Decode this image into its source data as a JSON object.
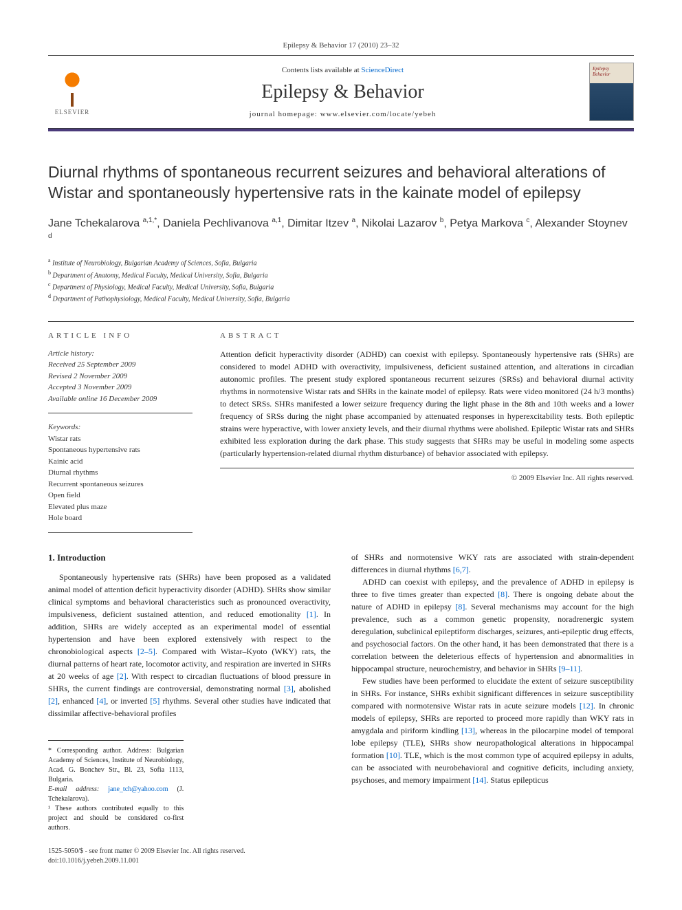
{
  "journal_ref": "Epilepsy & Behavior 17 (2010) 23–32",
  "header": {
    "contents_prefix": "Contents lists available at ",
    "contents_link": "ScienceDirect",
    "journal_name": "Epilepsy & Behavior",
    "homepage_prefix": "journal homepage: ",
    "homepage_url": "www.elsevier.com/locate/yebeh",
    "publisher": "ELSEVIER"
  },
  "title": "Diurnal rhythms of spontaneous recurrent seizures and behavioral alterations of Wistar and spontaneously hypertensive rats in the kainate model of epilepsy",
  "authors_html": "Jane Tchekalarova <sup>a,1,*</sup>, Daniela Pechlivanova <sup>a,1</sup>, Dimitar Itzev <sup>a</sup>, Nikolai Lazarov <sup>b</sup>, Petya Markova <sup>c</sup>, Alexander Stoynev <sup>d</sup>",
  "affiliations": [
    {
      "sup": "a",
      "text": "Institute of Neurobiology, Bulgarian Academy of Sciences, Sofia, Bulgaria"
    },
    {
      "sup": "b",
      "text": "Department of Anatomy, Medical Faculty, Medical University, Sofia, Bulgaria"
    },
    {
      "sup": "c",
      "text": "Department of Physiology, Medical Faculty, Medical University, Sofia, Bulgaria"
    },
    {
      "sup": "d",
      "text": "Department of Pathophysiology, Medical Faculty, Medical University, Sofia, Bulgaria"
    }
  ],
  "article_info_label": "ARTICLE INFO",
  "abstract_label": "ABSTRACT",
  "history": {
    "label": "Article history:",
    "received": "Received 25 September 2009",
    "revised": "Revised 2 November 2009",
    "accepted": "Accepted 3 November 2009",
    "online": "Available online 16 December 2009"
  },
  "keywords": {
    "label": "Keywords:",
    "items": [
      "Wistar rats",
      "Spontaneous hypertensive rats",
      "Kainic acid",
      "Diurnal rhythms",
      "Recurrent spontaneous seizures",
      "Open field",
      "Elevated plus maze",
      "Hole board"
    ]
  },
  "abstract": "Attention deficit hyperactivity disorder (ADHD) can coexist with epilepsy. Spontaneously hypertensive rats (SHRs) are considered to model ADHD with overactivity, impulsiveness, deficient sustained attention, and alterations in circadian autonomic profiles. The present study explored spontaneous recurrent seizures (SRSs) and behavioral diurnal activity rhythms in normotensive Wistar rats and SHRs in the kainate model of epilepsy. Rats were video monitored (24 h/3 months) to detect SRSs. SHRs manifested a lower seizure frequency during the light phase in the 8th and 10th weeks and a lower frequency of SRSs during the night phase accompanied by attenuated responses in hyperexcitability tests. Both epileptic strains were hyperactive, with lower anxiety levels, and their diurnal rhythms were abolished. Epileptic Wistar rats and SHRs exhibited less exploration during the dark phase. This study suggests that SHRs may be useful in modeling some aspects (particularly hypertension-related diurnal rhythm disturbance) of behavior associated with epilepsy.",
  "copyright": "© 2009 Elsevier Inc. All rights reserved.",
  "intro_heading": "1. Introduction",
  "col1_p1": "Spontaneously hypertensive rats (SHRs) have been proposed as a validated animal model of attention deficit hyperactivity disorder (ADHD). SHRs show similar clinical symptoms and behavioral characteristics such as pronounced overactivity, impulsiveness, deficient sustained attention, and reduced emotionality [1]. In addition, SHRs are widely accepted as an experimental model of essential hypertension and have been explored extensively with respect to the chronobiological aspects [2–5]. Compared with Wistar–Kyoto (WKY) rats, the diurnal patterns of heart rate, locomotor activity, and respiration are inverted in SHRs at 20 weeks of age [2]. With respect to circadian fluctuations of blood pressure in SHRs, the current findings are controversial, demonstrating normal [3], abolished [2], enhanced [4], or inverted [5] rhythms. Several other studies have indicated that dissimilar affective-behavioral profiles",
  "col2_p1": "of SHRs and normotensive WKY rats are associated with strain-dependent differences in diurnal rhythms [6,7].",
  "col2_p2": "ADHD can coexist with epilepsy, and the prevalence of ADHD in epilepsy is three to five times greater than expected [8]. There is ongoing debate about the nature of ADHD in epilepsy [8]. Several mechanisms may account for the high prevalence, such as a common genetic propensity, noradrenergic system deregulation, subclinical epileptiform discharges, seizures, anti-epileptic drug effects, and psychosocial factors. On the other hand, it has been demonstrated that there is a correlation between the deleterious effects of hypertension and abnormalities in hippocampal structure, neurochemistry, and behavior in SHRs [9–11].",
  "col2_p3": "Few studies have been performed to elucidate the extent of seizure susceptibility in SHRs. For instance, SHRs exhibit significant differences in seizure susceptibility compared with normotensive Wistar rats in acute seizure models [12]. In chronic models of epilepsy, SHRs are reported to proceed more rapidly than WKY rats in amygdala and piriform kindling [13], whereas in the pilocarpine model of temporal lobe epilepsy (TLE), SHRs show neuropathological alterations in hippocampal formation [10]. TLE, which is the most common type of acquired epilepsy in adults, can be associated with neurobehavioral and cognitive deficits, including anxiety, psychoses, and memory impairment [14]. Status epilepticus",
  "footnotes": {
    "corresponding": "* Corresponding author. Address: Bulgarian Academy of Sciences, Institute of Neurobiology, Acad. G. Bonchev Str., Bl. 23, Sofia 1113, Bulgaria.",
    "email_label": "E-mail address: ",
    "email": "jane_tch@yahoo.com",
    "email_suffix": " (J. Tchekalarova).",
    "equal": "¹ These authors contributed equally to this project and should be considered co-first authors."
  },
  "doi": {
    "line1": "1525-5050/$ - see front matter © 2009 Elsevier Inc. All rights reserved.",
    "line2": "doi:10.1016/j.yebeh.2009.11.001"
  },
  "colors": {
    "link": "#0066cc",
    "bar": "#4a3a7a",
    "elsevier_orange": "#f57c00",
    "text": "#222222"
  }
}
